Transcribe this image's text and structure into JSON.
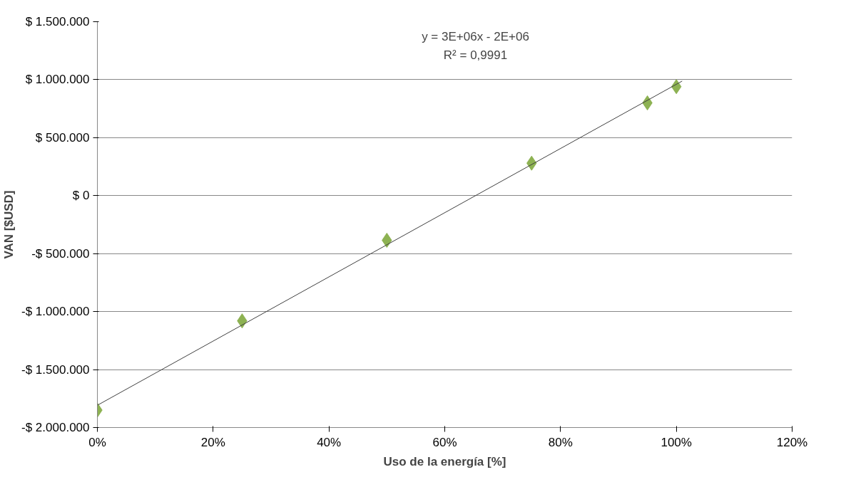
{
  "chart_data": {
    "type": "scatter",
    "xlabel": "Uso de la energía [%]",
    "ylabel": "VAN [$USD]",
    "series": [
      {
        "color": "#8db252",
        "marker": "diamond",
        "x": [
          0,
          25,
          50,
          75,
          95,
          100
        ],
        "values": [
          -1850000,
          -1080000,
          -385000,
          280000,
          800000,
          940000
        ]
      },
      {
        "type": "line",
        "color": "#404040",
        "x": [
          0,
          101
        ],
        "values": [
          -1808000,
          988000
        ]
      }
    ],
    "annotations": [
      "y = 3E+06x - 2E+06",
      "R² = 0,9991"
    ],
    "xlim": [
      0,
      120
    ],
    "xticks": [
      {
        "value": 0,
        "label": "0%"
      },
      {
        "value": 20,
        "label": "20%"
      },
      {
        "value": 40,
        "label": "40%"
      },
      {
        "value": 60,
        "label": "60%"
      },
      {
        "value": 80,
        "label": "80%"
      },
      {
        "value": 100,
        "label": "100%"
      },
      {
        "value": 120,
        "label": "120%"
      }
    ],
    "ylim": [
      -2000000,
      1500000
    ],
    "yticks": [
      {
        "value": -2000000,
        "label": "-$ 2.000.000"
      },
      {
        "value": -1500000,
        "label": "-$ 1.500.000"
      },
      {
        "value": -1000000,
        "label": "-$ 1.000.000"
      },
      {
        "value": -500000,
        "label": "-$ 500.000"
      },
      {
        "value": 0,
        "label": "$ 0"
      },
      {
        "value": 500000,
        "label": "$ 500.000"
      },
      {
        "value": 1000000,
        "label": "$ 1.000.000"
      },
      {
        "value": 1500000,
        "label": "$ 1.500.000"
      }
    ],
    "grid": "y"
  }
}
